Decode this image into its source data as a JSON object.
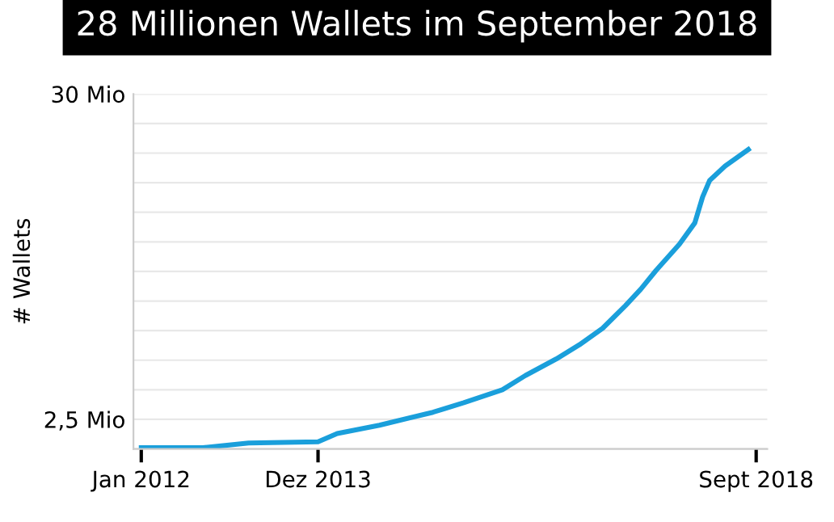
{
  "chart_data": {
    "type": "line",
    "title": "28 Millionen Wallets im September 2018",
    "ylabel": "# Wallets",
    "x": [
      "2012-01",
      "2012-09",
      "2013-03",
      "2013-12",
      "2014-02-15",
      "2014-08",
      "2015-03",
      "2015-07",
      "2015-12",
      "2016-03",
      "2016-07",
      "2016-10",
      "2017-01",
      "2017-04",
      "2017-06",
      "2017-08",
      "2017-11",
      "2018-01",
      "2018-02",
      "2018-03",
      "2018-05",
      "2018-08"
    ],
    "series": [
      {
        "color": "#1a9fdb",
        "values": [
          0.1,
          0.1,
          0.5,
          0.6,
          1.3,
          2.0,
          3.1,
          3.9,
          5.0,
          6.2,
          7.6,
          8.8,
          10.2,
          12.1,
          13.5,
          15.1,
          17.3,
          19.1,
          21.3,
          22.7,
          23.9,
          25.3
        ]
      }
    ],
    "xlim": [
      "2011-12-01",
      "2018-10-15"
    ],
    "xticks": [
      {
        "value": "2012-01",
        "label": "Jan 2012"
      },
      {
        "value": "2013-12",
        "label": "Dez 2013"
      },
      {
        "value": "2018-09",
        "label": "Sept 2018"
      }
    ],
    "ylim": [
      0,
      30
    ],
    "yticks": [
      {
        "value": 0,
        "label": null
      },
      {
        "value": 2.5,
        "label": "2,5 Mio"
      },
      {
        "value": 5,
        "label": null
      },
      {
        "value": 7.5,
        "label": null
      },
      {
        "value": 10,
        "label": null
      },
      {
        "value": 12.5,
        "label": null
      },
      {
        "value": 15,
        "label": null
      },
      {
        "value": 17.5,
        "label": null
      },
      {
        "value": 20,
        "label": null
      },
      {
        "value": 22.5,
        "label": null
      },
      {
        "value": 25,
        "label": null
      },
      {
        "value": 27.5,
        "label": null
      },
      {
        "value": 30,
        "label": "30 Mio"
      }
    ],
    "grid": "y",
    "marker": "none",
    "line_style": "solid"
  }
}
